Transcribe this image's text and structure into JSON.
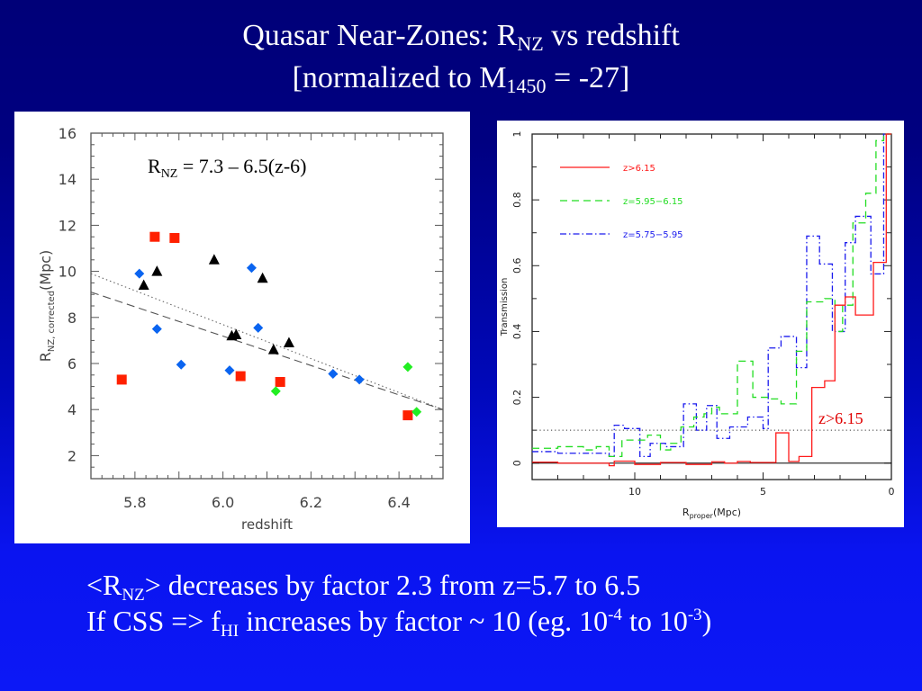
{
  "slide": {
    "title_line1_pre": "Quasar Near-Zones:  R",
    "title_line1_sub": "NZ",
    "title_line1_post": " vs redshift",
    "title_line2_pre": "[normalized to M",
    "title_line2_sub": "1450",
    "title_line2_post": " = -27]",
    "bullet1_pre": "<R",
    "bullet1_sub": "NZ",
    "bullet1_post": "> decreases by factor 2.3 from z=5.7 to 6.5",
    "bullet2_pre": "If CSS => f",
    "bullet2_sub": "HI",
    "bullet2_mid": " increases by factor ~ 10  (eg. 10",
    "bullet2_sup1": "-4",
    "bullet2_mid2": " to 10",
    "bullet2_sup2": "-3",
    "bullet2_post": ")"
  },
  "chart_data": [
    {
      "type": "scatter",
      "title": "",
      "annotation": {
        "pre": "R",
        "sub": "NZ",
        "post": " = 7.3 – 6.5(z-6)"
      },
      "xlabel": "redshift",
      "ylabel": {
        "pre": "R",
        "sub": "NZ, corrected",
        "post": "(Mpc)"
      },
      "xlim": [
        5.7,
        6.5
      ],
      "ylim": [
        1,
        16
      ],
      "xticks": [
        5.8,
        6.0,
        6.2,
        6.4
      ],
      "xtick_labels": [
        "5.8",
        "6.0",
        "6.2",
        "6.4"
      ],
      "yticks": [
        2,
        4,
        6,
        8,
        10,
        12,
        14,
        16
      ],
      "ytick_labels": [
        "2",
        "4",
        "6",
        "8",
        "10",
        "12",
        "14",
        "16"
      ],
      "grid": false,
      "series": [
        {
          "name": "red-squares",
          "marker": "square",
          "color": "#ff2000",
          "points": [
            [
              5.77,
              5.3
            ],
            [
              5.845,
              11.5
            ],
            [
              5.89,
              11.45
            ],
            [
              6.04,
              5.45
            ],
            [
              6.13,
              5.2
            ],
            [
              6.42,
              3.75
            ]
          ]
        },
        {
          "name": "blue-diamonds",
          "marker": "diamond",
          "color": "#0a64f0",
          "points": [
            [
              5.81,
              9.9
            ],
            [
              5.85,
              7.5
            ],
            [
              5.905,
              5.95
            ],
            [
              6.015,
              5.7
            ],
            [
              6.065,
              10.15
            ],
            [
              6.08,
              7.55
            ],
            [
              6.25,
              5.55
            ],
            [
              6.31,
              5.3
            ]
          ]
        },
        {
          "name": "black-triangles",
          "marker": "triangle",
          "color": "#000000",
          "points": [
            [
              5.82,
              9.4
            ],
            [
              5.85,
              10.0
            ],
            [
              5.98,
              10.5
            ],
            [
              6.02,
              7.2
            ],
            [
              6.03,
              7.25
            ],
            [
              6.09,
              9.7
            ],
            [
              6.115,
              6.6
            ],
            [
              6.15,
              6.9
            ]
          ]
        },
        {
          "name": "green-diamonds",
          "marker": "diamond",
          "color": "#22ee22",
          "points": [
            [
              6.12,
              4.8
            ],
            [
              6.42,
              5.85
            ],
            [
              6.44,
              3.9
            ]
          ]
        }
      ],
      "fit_lines": [
        {
          "name": "dotted-fit",
          "style": "dotted",
          "color": "#666666",
          "points": [
            [
              5.7,
              9.9
            ],
            [
              6.5,
              4.0
            ]
          ]
        },
        {
          "name": "dashed-fit",
          "style": "dashed",
          "color": "#555555",
          "points": [
            [
              5.7,
              9.1
            ],
            [
              6.5,
              4.0
            ]
          ]
        }
      ]
    },
    {
      "type": "line",
      "title": "",
      "xlabel": {
        "pre": "R",
        "sub": "proper",
        "post": "(Mpc)"
      },
      "ylabel": "Transmission",
      "xlim": [
        14,
        0
      ],
      "ylim": [
        -0.05,
        1.0
      ],
      "xticks": [
        10,
        5,
        0
      ],
      "xtick_labels": [
        "10",
        "5",
        "0"
      ],
      "yticks": [
        0,
        0.2,
        0.4,
        0.6,
        0.8,
        1
      ],
      "ytick_labels": [
        "0",
        "0.2",
        "0.4",
        "0.6",
        "0.8",
        "1"
      ],
      "grid": false,
      "legend_position": "top-left",
      "annotation": "z>6.15",
      "reference_lines": [
        {
          "name": "threshold-0.1",
          "y": 0.1,
          "style": "dotted",
          "color": "#333333"
        },
        {
          "name": "zero-line",
          "y": 0.0,
          "style": "solid",
          "color": "#000000"
        }
      ],
      "series": [
        {
          "name": "z>6.15",
          "style": "solid",
          "color": "#ff1a1a",
          "steps": [
            [
              14,
              0.003
            ],
            [
              13,
              0.0
            ],
            [
              12,
              0.0
            ],
            [
              11,
              -0.008
            ],
            [
              10.8,
              0.006
            ],
            [
              10,
              -0.004
            ],
            [
              9,
              0.002
            ],
            [
              8,
              -0.004
            ],
            [
              7,
              0.004
            ],
            [
              6.5,
              0.0
            ],
            [
              6,
              0.005
            ],
            [
              5.5,
              0.002
            ],
            [
              4.5,
              0.092
            ],
            [
              4.0,
              0.005
            ],
            [
              3.6,
              0.02
            ],
            [
              3.1,
              0.23
            ],
            [
              2.6,
              0.25
            ],
            [
              2.2,
              0.48
            ],
            [
              1.8,
              0.505
            ],
            [
              1.4,
              0.45
            ],
            [
              0.7,
              0.61
            ],
            [
              0.2,
              1.0
            ],
            [
              0,
              1.0
            ]
          ]
        },
        {
          "name": "z=5.95−6.15",
          "style": "dashed",
          "color": "#22dd22",
          "steps": [
            [
              14,
              0.045
            ],
            [
              13,
              0.05
            ],
            [
              12,
              0.04
            ],
            [
              11.5,
              0.05
            ],
            [
              11,
              0.02
            ],
            [
              10.5,
              0.07
            ],
            [
              9.5,
              0.085
            ],
            [
              9,
              0.04
            ],
            [
              8.6,
              0.06
            ],
            [
              8.2,
              0.11
            ],
            [
              7.7,
              0.14
            ],
            [
              7.3,
              0.15
            ],
            [
              7,
              0.17
            ],
            [
              6.7,
              0.15
            ],
            [
              6,
              0.31
            ],
            [
              5.4,
              0.2
            ],
            [
              4.8,
              0.195
            ],
            [
              4.3,
              0.18
            ],
            [
              3.7,
              0.34
            ],
            [
              3.3,
              0.49
            ],
            [
              2.6,
              0.5
            ],
            [
              2.2,
              0.4
            ],
            [
              1.9,
              0.48
            ],
            [
              1.5,
              0.73
            ],
            [
              1,
              0.82
            ],
            [
              0.6,
              0.98
            ],
            [
              0.3,
              1.0
            ],
            [
              0,
              1.0
            ]
          ]
        },
        {
          "name": "z=5.75−5.95",
          "style": "dashdot",
          "color": "#1a1aee",
          "steps": [
            [
              14,
              0.035
            ],
            [
              13,
              0.03
            ],
            [
              12,
              0.03
            ],
            [
              11,
              0.02
            ],
            [
              10.8,
              0.115
            ],
            [
              10.4,
              0.105
            ],
            [
              9.8,
              0.02
            ],
            [
              9.4,
              0.06
            ],
            [
              8.8,
              0.05
            ],
            [
              8.1,
              0.18
            ],
            [
              7.6,
              0.1
            ],
            [
              7.2,
              0.175
            ],
            [
              6.8,
              0.075
            ],
            [
              6.3,
              0.11
            ],
            [
              5.6,
              0.14
            ],
            [
              5,
              0.105
            ],
            [
              4.8,
              0.35
            ],
            [
              4.3,
              0.385
            ],
            [
              3.7,
              0.29
            ],
            [
              3.3,
              0.69
            ],
            [
              2.8,
              0.605
            ],
            [
              2.3,
              0.4
            ],
            [
              1.8,
              0.67
            ],
            [
              1.4,
              0.75
            ],
            [
              0.8,
              0.575
            ],
            [
              0.3,
              1.0
            ],
            [
              0,
              1.0
            ]
          ]
        }
      ]
    }
  ]
}
